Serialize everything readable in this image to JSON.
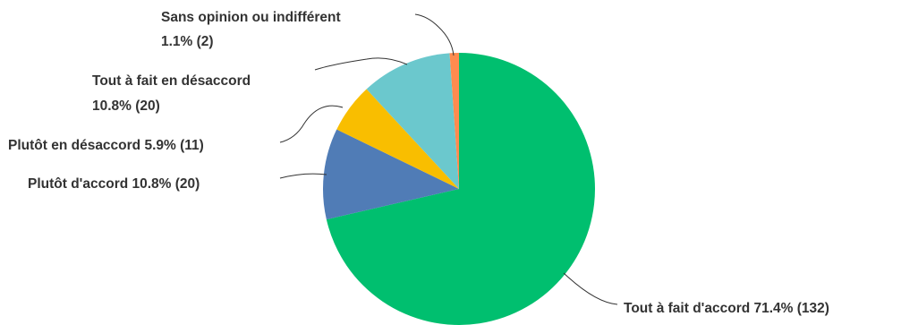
{
  "chart_data": {
    "type": "pie",
    "title": "",
    "slices": [
      {
        "name": "Tout à fait d'accord",
        "percent": 71.4,
        "count": 132,
        "value_label": "71.4% (132)",
        "color": "#00bf6f"
      },
      {
        "name": "Plutôt d'accord",
        "percent": 10.8,
        "count": 20,
        "value_label": "10.8% (20)",
        "color": "#507cb6"
      },
      {
        "name": "Plutôt en désaccord",
        "percent": 5.9,
        "count": 11,
        "value_label": "5.9% (11)",
        "color": "#f9be00"
      },
      {
        "name": "Tout à fait en désaccord",
        "percent": 10.8,
        "count": 20,
        "value_label": "10.8% (20)",
        "color": "#6bc8cd"
      },
      {
        "name": "Sans opinion ou indifférent",
        "percent": 1.1,
        "count": 2,
        "value_label": "1.1% (2)",
        "color": "#ff8b4f"
      }
    ],
    "labels": [
      {
        "line1": "Tout à fait d'accord 71.4% (132)",
        "line2": ""
      },
      {
        "line1": "Plutôt d'accord 10.8% (20)",
        "line2": ""
      },
      {
        "line1": "Plutôt en désaccord 5.9% (11)",
        "line2": ""
      },
      {
        "line1": "Tout à fait en désaccord",
        "line2": "10.8% (20)"
      },
      {
        "line1": "Sans opinion ou indifférent",
        "line2": "1.1% (2)"
      }
    ]
  }
}
